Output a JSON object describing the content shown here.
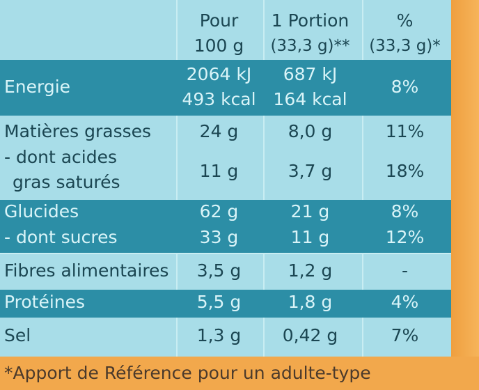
{
  "header": {
    "col1": {
      "line1": "Pour",
      "line2": "100 g"
    },
    "col2": {
      "line1": "1 Portion",
      "line2": "(33,3 g)**"
    },
    "col3": {
      "line1": "%",
      "line2": "(33,3 g)*"
    }
  },
  "rows": {
    "energie": {
      "label": "Energie",
      "v100a": "2064 kJ",
      "v100b": "493 kcal",
      "vPortiona": "687 kJ",
      "vPortionb": "164 kcal",
      "pct": "8%"
    },
    "matieres": {
      "label": "Matières grasses",
      "v100": "24 g",
      "vPortion": "8,0 g",
      "pct": "11%"
    },
    "satures": {
      "label1": "- dont acides",
      "label2": "gras saturés",
      "v100": "11 g",
      "vPortion": "3,7 g",
      "pct": "18%"
    },
    "glucides": {
      "label": "Glucides",
      "v100": "62 g",
      "vPortion": "21 g",
      "pct": "8%"
    },
    "sucres": {
      "label": "- dont sucres",
      "v100": "33 g",
      "vPortion": "11 g",
      "pct": "12%"
    },
    "fibres": {
      "label": "Fibres alimentaires",
      "v100": "3,5 g",
      "vPortion": "1,2 g",
      "pct": "-"
    },
    "proteines": {
      "label": "Protéines",
      "v100": "5,5 g",
      "vPortion": "1,8 g",
      "pct": "4%"
    },
    "sel": {
      "label": "Sel",
      "v100": "1,3 g",
      "vPortion": "0,42 g",
      "pct": "7%"
    }
  },
  "footnote": "*Apport de Référence pour un adulte-type"
}
